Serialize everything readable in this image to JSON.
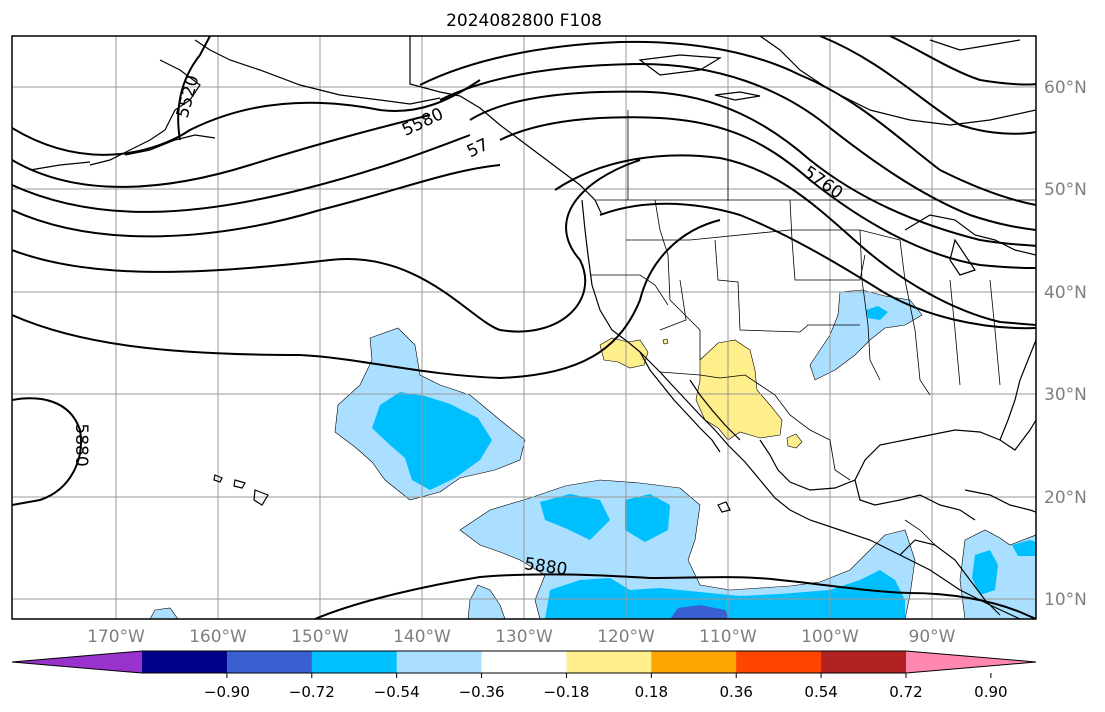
{
  "title": "2024082800 F108",
  "map": {
    "lon_labels": [
      "170°W",
      "160°W",
      "150°W",
      "140°W",
      "130°W",
      "120°W",
      "110°W",
      "100°W",
      "90°W"
    ],
    "lat_labels": [
      "60°N",
      "50°N",
      "40°N",
      "30°N",
      "20°N",
      "10°N"
    ],
    "contour_labels": [
      "5520",
      "5580",
      "5760",
      "5880",
      "5880",
      "57"
    ],
    "colors": {
      "light_blue": "#abdfff",
      "blue": "#00bfff",
      "medium_blue": "#3a5fd0",
      "yellow": "#ffee8c",
      "frame": "#000000",
      "grid": "#9a9a9a"
    }
  },
  "colorbar": {
    "tick_labels": [
      "−0.90",
      "−0.72",
      "−0.54",
      "−0.36",
      "−0.18",
      "0.18",
      "0.36",
      "0.54",
      "0.72",
      "0.90"
    ],
    "colors": [
      "#9932cc",
      "#00008b",
      "#3a5fd0",
      "#00bfff",
      "#abdfff",
      "#ffffff",
      "#ffee8c",
      "#ffa500",
      "#ff4500",
      "#b22222",
      "#ff88b0"
    ]
  }
}
